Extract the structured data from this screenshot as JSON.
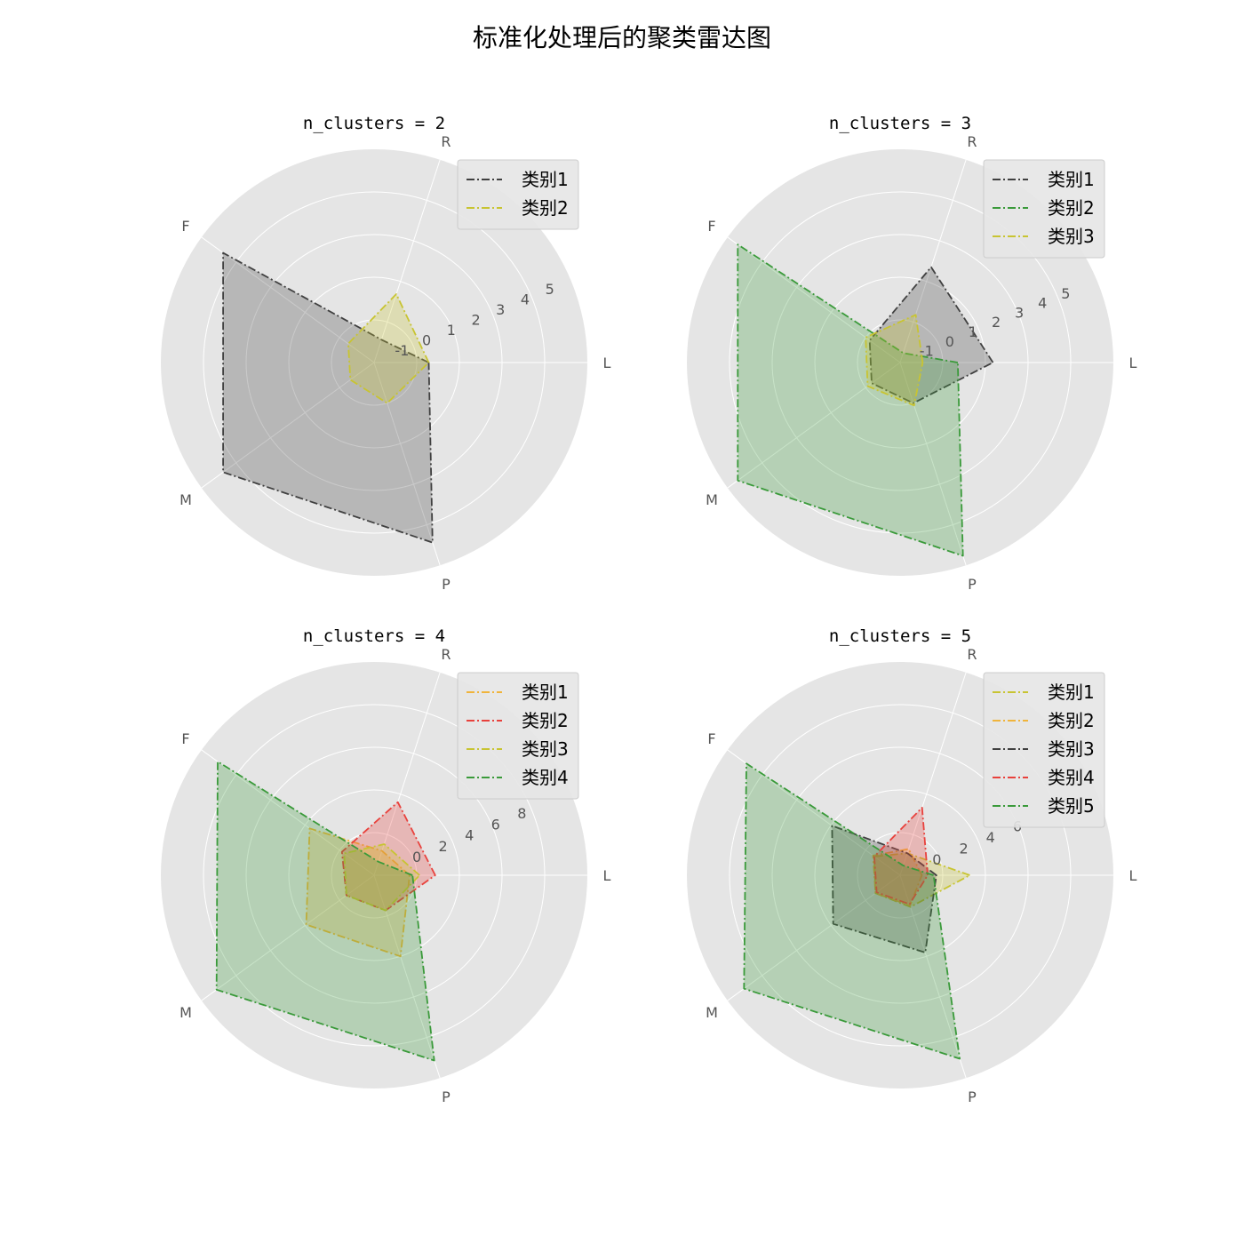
{
  "title": "标准化处理后的聚类雷达图",
  "chart_data": [
    {
      "type": "radar",
      "title": "n_clusters = 2",
      "axes": [
        "L",
        "R",
        "F",
        "M",
        "P"
      ],
      "rlim": [
        -2,
        6
      ],
      "rticks": [
        -1,
        0,
        1,
        2,
        3,
        4,
        5
      ],
      "legend": "top-right",
      "series": [
        {
          "name": "类别1",
          "color": "#404040",
          "values": [
            0.05,
            -1.1,
            5.0,
            5.0,
            5.1
          ]
        },
        {
          "name": "类别2",
          "color": "#c8c432",
          "values": [
            0.05,
            0.7,
            -0.8,
            -0.9,
            -0.4
          ]
        }
      ]
    },
    {
      "type": "radar",
      "title": "n_clusters = 3",
      "axes": [
        "L",
        "R",
        "F",
        "M",
        "P"
      ],
      "rlim": [
        -2,
        6.5
      ],
      "rticks": [
        -1,
        0,
        1,
        2,
        3,
        4,
        5
      ],
      "legend": "top-right",
      "series": [
        {
          "name": "类别1",
          "color": "#404040",
          "values": [
            1.7,
            2.0,
            -0.5,
            -0.6,
            -0.3
          ]
        },
        {
          "name": "类别2",
          "color": "#3a9a3a",
          "values": [
            0.3,
            -1.6,
            6.0,
            6.0,
            6.1
          ]
        },
        {
          "name": "类别3",
          "color": "#c8c432",
          "values": [
            -1.1,
            0.0,
            -0.3,
            -0.4,
            -0.2
          ]
        }
      ]
    },
    {
      "type": "radar",
      "title": "n_clusters = 4",
      "axes": [
        "L",
        "R",
        "F",
        "M",
        "P"
      ],
      "rlim": [
        -3,
        12
      ],
      "rticks": [
        0,
        2,
        4,
        6,
        8
      ],
      "legend": "top-right",
      "series": [
        {
          "name": "类别1",
          "color": "#f0b43c",
          "values": [
            -0.5,
            -1.2,
            2.6,
            2.9,
            3.0
          ]
        },
        {
          "name": "类别2",
          "color": "#e8413c",
          "values": [
            1.3,
            2.4,
            -0.2,
            -0.6,
            -0.4
          ]
        },
        {
          "name": "类别3",
          "color": "#c8c432",
          "values": [
            0.2,
            -0.7,
            -0.4,
            -0.6,
            -0.4
          ]
        },
        {
          "name": "类别4",
          "color": "#3a9a3a",
          "values": [
            -0.3,
            -2.0,
            10.6,
            10.7,
            10.7
          ]
        }
      ]
    },
    {
      "type": "radar",
      "title": "n_clusters = 5",
      "axes": [
        "L",
        "R",
        "F",
        "M",
        "P"
      ],
      "rlim": [
        -2.5,
        12.2
      ],
      "rticks": [
        0,
        2,
        4,
        6,
        10
      ],
      "legend": "top-right",
      "series": [
        {
          "name": "类别1",
          "color": "#c8c432",
          "values": [
            2.3,
            -0.9,
            -0.3,
            -0.4,
            -0.2
          ]
        },
        {
          "name": "类别2",
          "color": "#f0b43c",
          "values": [
            -1.0,
            -0.6,
            -0.2,
            -0.4,
            -0.3
          ]
        },
        {
          "name": "类别3",
          "color": "#404040",
          "values": [
            0.0,
            -0.9,
            3.3,
            3.2,
            3.1
          ]
        },
        {
          "name": "类别4",
          "color": "#e8413c",
          "values": [
            -0.6,
            2.4,
            -0.3,
            -0.5,
            -0.4
          ]
        },
        {
          "name": "类别5",
          "color": "#3a9a3a",
          "values": [
            -0.2,
            -1.8,
            10.6,
            10.8,
            10.8
          ]
        }
      ]
    }
  ]
}
